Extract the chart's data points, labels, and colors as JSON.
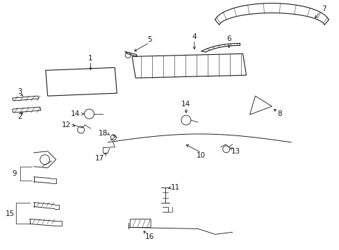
{
  "bg_color": "#ffffff",
  "line_color": "#1a1a1a",
  "lw": 0.8,
  "label_fs": 7.5
}
